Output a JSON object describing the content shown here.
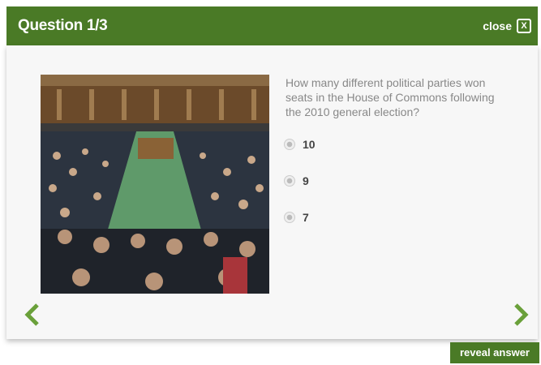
{
  "header": {
    "title": "Question 1/3",
    "close": "close"
  },
  "question": {
    "text": "How many different political parties won seats in the House of Commons following the 2010 general election?",
    "options": [
      "10",
      "9",
      "7"
    ]
  },
  "reveal": "reveal answer"
}
